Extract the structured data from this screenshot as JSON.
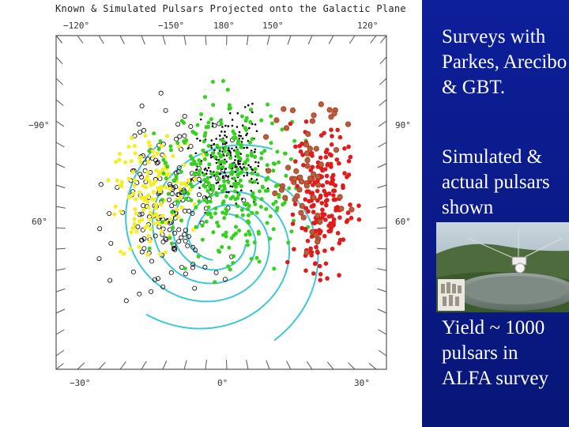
{
  "figure": {
    "title": "Known & Simulated Pulsars Projected onto the Galactic Plane",
    "top_ticks": [
      "−120°",
      "−150°",
      "180°",
      "150°",
      "120°"
    ],
    "bottom_ticks": [
      "−30°",
      "0°",
      "30°"
    ],
    "left_ticks": [
      "−90°",
      "60°"
    ],
    "right_ticks": [
      "90°",
      "60°"
    ],
    "colors": {
      "frame": "#555555",
      "spiral": "#3fc7d8",
      "yellow": "#f5ee22",
      "green": "#35d11f",
      "red": "#e11b1b",
      "dark_red": "#8b5a2b",
      "black": "#000000"
    }
  },
  "slide": {
    "text_1": "Surveys with Parkes, Arecibo & GBT.",
    "text_2": "Simulated & actual pulsars shown",
    "text_3": "Yield ~ 1000 pulsars in ALFA survey",
    "background": "#0a1a8c"
  },
  "photo": {
    "description_icon": "arecibo-telescope-photo-icon"
  }
}
